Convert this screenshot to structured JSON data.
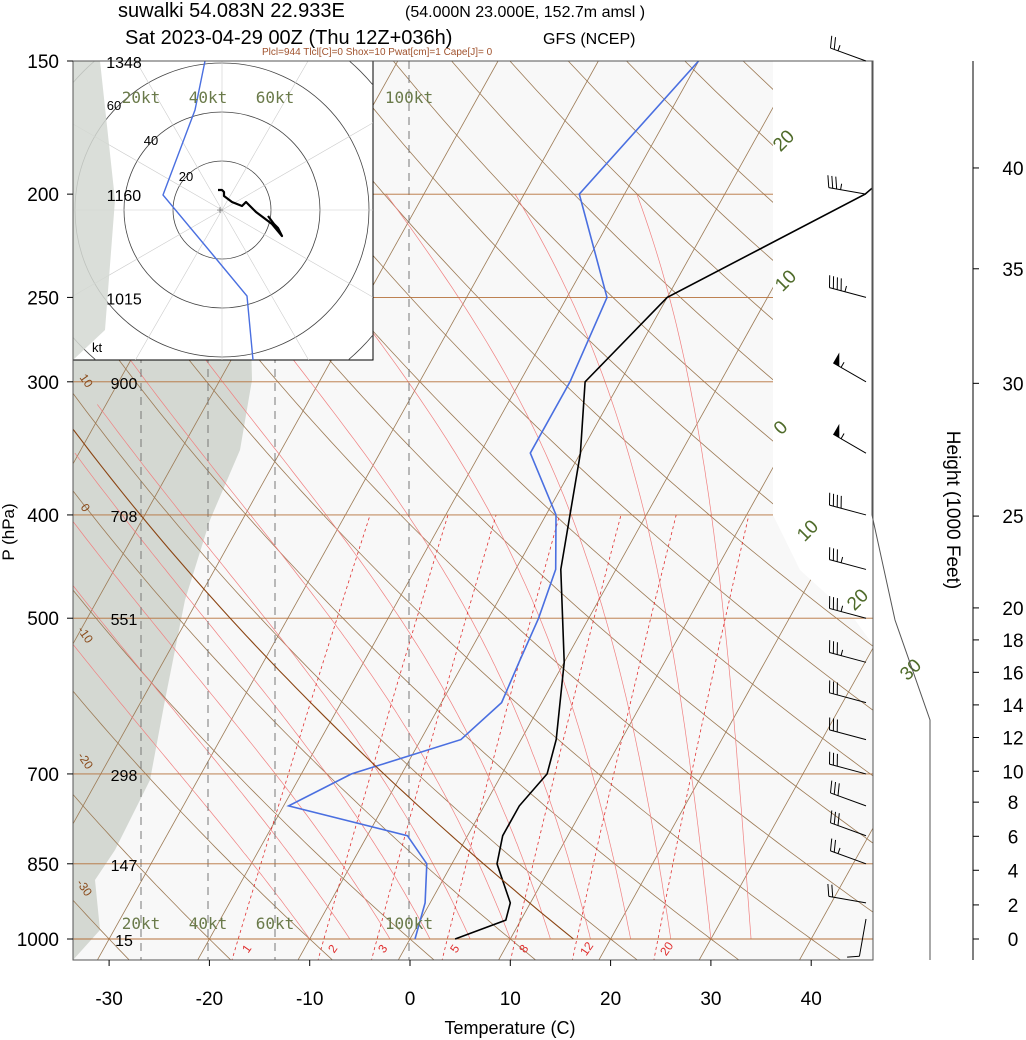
{
  "header": {
    "title_main": "suwalki 54.083N 22.933E",
    "title_coords": "(54.000N 23.000E, 152.7m amsl )",
    "title_date": "Sat 2023-04-29 00Z (Thu 12Z+036h)",
    "title_model": "GFS (NCEP)",
    "indices": "Plcl=944 Tlcl[C]=0 Shox=10 Pwat[cm]=1 Cape[J]= 0"
  },
  "chart_data": {
    "type": "line",
    "xlabel": "Temperature (C)",
    "ylabel": "P (hPa)",
    "y2label": "Height (1000 Feet)",
    "xlim": [
      -34,
      46
    ],
    "ylim": [
      1050,
      150
    ],
    "x_ticks": [
      -30,
      -20,
      -10,
      0,
      10,
      20,
      30,
      40
    ],
    "pressure_ticks": [
      {
        "p": 150,
        "label": "150",
        "h": "1348"
      },
      {
        "p": 200,
        "label": "200",
        "h": "1160"
      },
      {
        "p": 250,
        "label": "250",
        "h": "1015"
      },
      {
        "p": 300,
        "label": "300",
        "h": "900"
      },
      {
        "p": 400,
        "label": "400",
        "h": "708"
      },
      {
        "p": 500,
        "label": "500",
        "h": "551"
      },
      {
        "p": 700,
        "label": "700",
        "h": "298"
      },
      {
        "p": 850,
        "label": "850",
        "h": "147"
      },
      {
        "p": 1000,
        "label": "1000",
        "h": "15"
      }
    ],
    "height_ticks": [
      {
        "kft": 0,
        "p": 1000
      },
      {
        "kft": 2,
        "p": 929
      },
      {
        "kft": 4,
        "p": 862
      },
      {
        "kft": 6,
        "p": 801
      },
      {
        "kft": 8,
        "p": 744
      },
      {
        "kft": 10,
        "p": 696
      },
      {
        "kft": 12,
        "p": 647
      },
      {
        "kft": 14,
        "p": 603
      },
      {
        "kft": 16,
        "p": 562
      },
      {
        "kft": 18,
        "p": 524
      },
      {
        "kft": 20,
        "p": 489
      },
      {
        "kft": 25,
        "p": 401
      },
      {
        "kft": 30,
        "p": 301
      },
      {
        "kft": 35,
        "p": 235
      },
      {
        "kft": 40,
        "p": 189
      }
    ],
    "series": [
      {
        "name": "temperature",
        "color": "#000000",
        "points": [
          [
            4.5,
            1000
          ],
          [
            8.5,
            960
          ],
          [
            8.0,
            925
          ],
          [
            4.5,
            850
          ],
          [
            3.5,
            800
          ],
          [
            3.5,
            750
          ],
          [
            4.5,
            700
          ],
          [
            3.5,
            650
          ],
          [
            0,
            550
          ],
          [
            -5.5,
            450
          ],
          [
            -10,
            350
          ],
          [
            -13.5,
            300
          ],
          [
            -10,
            250
          ],
          [
            4,
            200
          ],
          [
            12,
            150
          ]
        ]
      },
      {
        "name": "dewpoint",
        "color": "#4a6fe0",
        "points": [
          [
            0.5,
            1000
          ],
          [
            -0.5,
            925
          ],
          [
            -2.5,
            850
          ],
          [
            -6,
            800
          ],
          [
            -19.5,
            750
          ],
          [
            -15,
            700
          ],
          [
            -6,
            650
          ],
          [
            -4,
            600
          ],
          [
            -4.5,
            550
          ],
          [
            -5,
            500
          ],
          [
            -6,
            450
          ],
          [
            -9,
            400
          ],
          [
            -15,
            350
          ],
          [
            -15,
            300
          ],
          [
            -16,
            250
          ],
          [
            -24.5,
            200
          ],
          [
            -20,
            150
          ]
        ]
      }
    ],
    "wind_speed_rings": [
      "20",
      "40",
      "60"
    ],
    "wind_scale_labels": [
      "20kt",
      "40kt",
      "60kt",
      "100kt"
    ],
    "hodograph_unit": "kt",
    "hodograph_points": [
      [
        0,
        0
      ],
      [
        2,
        0
      ],
      [
        3,
        -1
      ],
      [
        3,
        -3
      ],
      [
        7,
        -6
      ],
      [
        12,
        -8
      ],
      [
        14,
        -6
      ],
      [
        19,
        -11
      ],
      [
        27,
        -17
      ],
      [
        32,
        -23
      ],
      [
        30,
        -19
      ],
      [
        28,
        -17
      ],
      [
        25,
        -13
      ]
    ],
    "mixing_ratio_labels": [
      "1",
      "2",
      "3",
      "5",
      "8",
      "12",
      "20"
    ],
    "isotherm_labels": [
      "20",
      "10",
      "0",
      "10",
      "20",
      "30"
    ],
    "dry_adiabat_labels": [
      "30",
      "20",
      "10",
      "0",
      "-10",
      "-20",
      "-30"
    ],
    "wind_barbs": [
      {
        "p": 1000,
        "speed": 10,
        "dir": 190
      },
      {
        "p": 925,
        "speed": 20,
        "dir": 280
      },
      {
        "p": 850,
        "speed": 25,
        "dir": 290
      },
      {
        "p": 800,
        "speed": 30,
        "dir": 290
      },
      {
        "p": 750,
        "speed": 30,
        "dir": 290
      },
      {
        "p": 700,
        "speed": 30,
        "dir": 285
      },
      {
        "p": 650,
        "speed": 30,
        "dir": 285
      },
      {
        "p": 600,
        "speed": 30,
        "dir": 285
      },
      {
        "p": 550,
        "speed": 35,
        "dir": 285
      },
      {
        "p": 500,
        "speed": 35,
        "dir": 285
      },
      {
        "p": 450,
        "speed": 35,
        "dir": 285
      },
      {
        "p": 400,
        "speed": 40,
        "dir": 285
      },
      {
        "p": 350,
        "speed": 55,
        "dir": 300
      },
      {
        "p": 300,
        "speed": 55,
        "dir": 300
      },
      {
        "p": 250,
        "speed": 45,
        "dir": 285
      },
      {
        "p": 200,
        "speed": 35,
        "dir": 280
      },
      {
        "p": 150,
        "speed": 25,
        "dir": 290
      }
    ]
  },
  "colors": {
    "frame": "#555555",
    "isobar": "#b5703a",
    "isotherm": "#9c7a55",
    "dry_adiabat": "#9c7a55",
    "moist_adiabat": "#f08080",
    "mixing_ratio": "#e03030",
    "shade": "#d4d8d2",
    "hodo_dewpoint": "#4a6fe0",
    "label_green": "#4f6b2a",
    "label_brown": "#8a4a1a"
  }
}
